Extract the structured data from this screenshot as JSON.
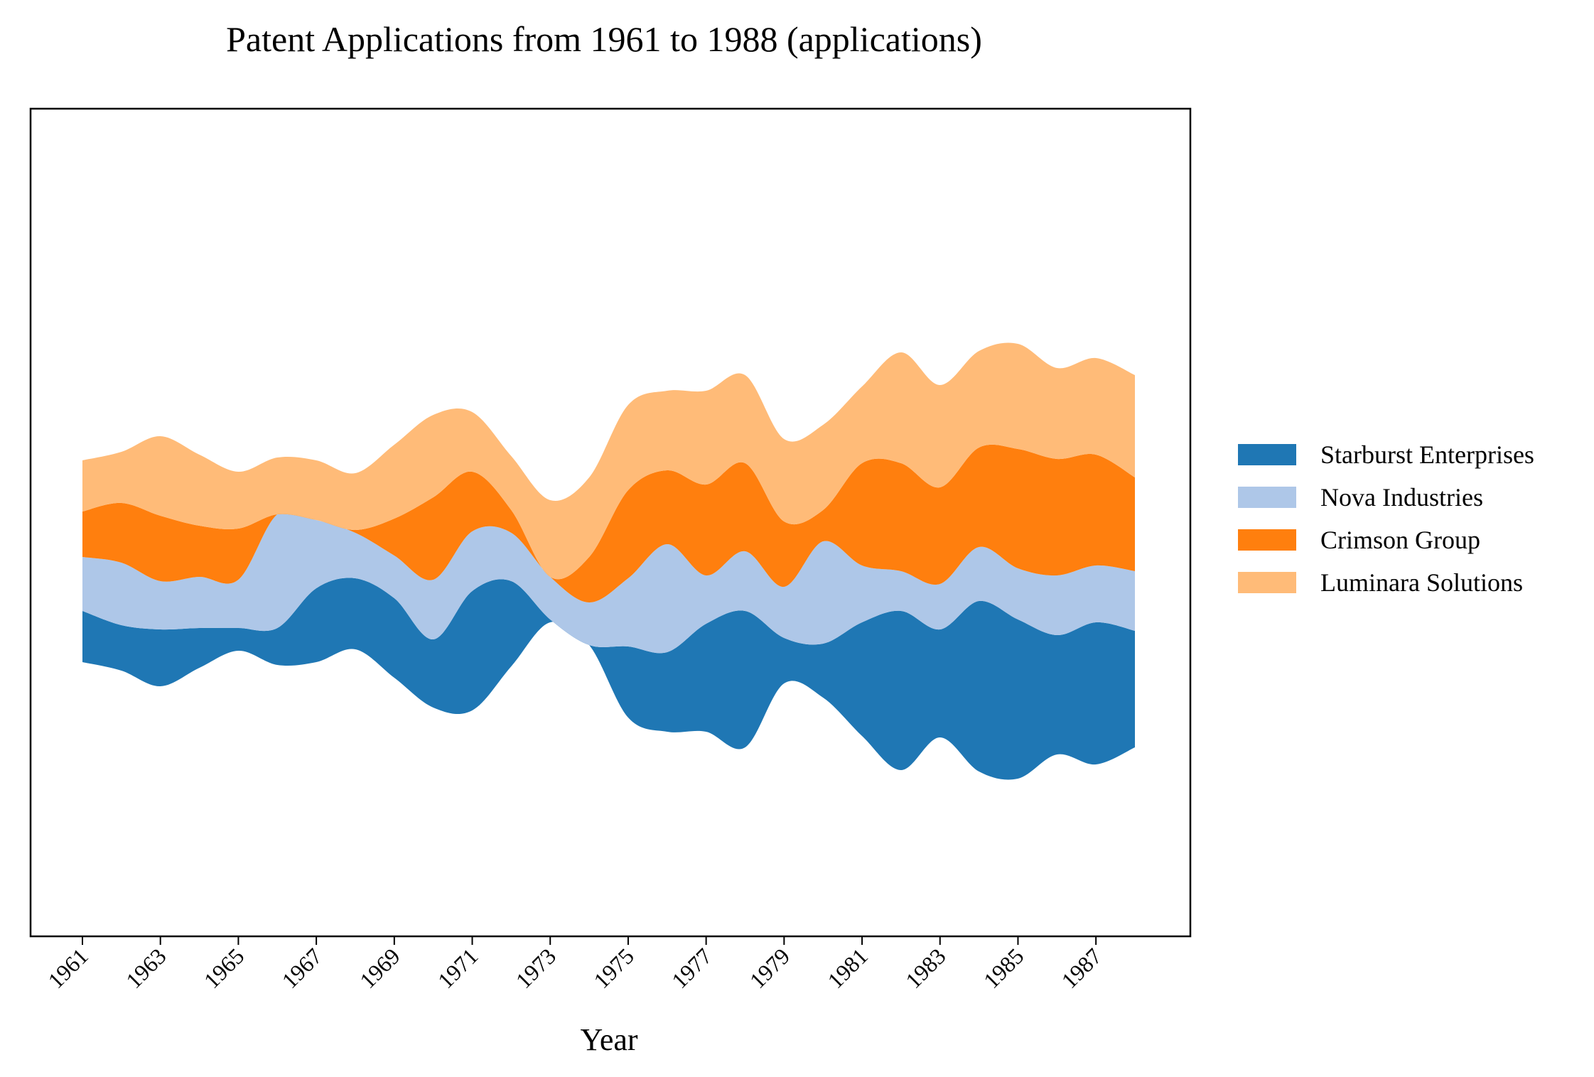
{
  "chart_data": {
    "type": "area",
    "subtype": "streamgraph",
    "title": "Patent Applications from 1961 to 1988 (applications)",
    "xlabel": "Year",
    "ylabel": "",
    "x": [
      1961,
      1962,
      1963,
      1964,
      1965,
      1966,
      1967,
      1968,
      1969,
      1970,
      1971,
      1972,
      1973,
      1974,
      1975,
      1976,
      1977,
      1978,
      1979,
      1980,
      1981,
      1982,
      1983,
      1984,
      1985,
      1986,
      1987,
      1988
    ],
    "xticks": [
      "1961",
      "1963",
      "1965",
      "1967",
      "1969",
      "1971",
      "1973",
      "1975",
      "1977",
      "1979",
      "1981",
      "1983",
      "1985",
      "1987"
    ],
    "yticks_visible": false,
    "grid": false,
    "legend_position": "right",
    "series": [
      {
        "name": "Starburst Enterprises",
        "color": "#1f77b4",
        "values": [
          90,
          80,
          100,
          70,
          40,
          65,
          130,
          125,
          140,
          120,
          210,
          150,
          5,
          0,
          125,
          140,
          190,
          240,
          80,
          95,
          200,
          280,
          190,
          300,
          280,
          210,
          250,
          205
        ]
      },
      {
        "name": "Nova Industries",
        "color": "#aec7e8",
        "values": [
          95,
          110,
          85,
          90,
          85,
          200,
          120,
          80,
          75,
          105,
          105,
          85,
          75,
          75,
          120,
          190,
          85,
          105,
          90,
          180,
          100,
          70,
          80,
          95,
          90,
          105,
          100,
          105
        ]
      },
      {
        "name": "Crimson Group",
        "color": "#ff7f0e",
        "values": [
          80,
          105,
          115,
          90,
          90,
          0,
          0,
          5,
          65,
          145,
          105,
          40,
          0,
          80,
          155,
          130,
          160,
          155,
          115,
          55,
          180,
          190,
          170,
          175,
          210,
          205,
          195,
          165
        ]
      },
      {
        "name": "Luminara Solutions",
        "color": "#ffbb78",
        "values": [
          90,
          90,
          140,
          125,
          100,
          100,
          105,
          100,
          130,
          145,
          105,
          95,
          135,
          140,
          150,
          140,
          165,
          155,
          145,
          150,
          135,
          195,
          180,
          170,
          185,
          160,
          170,
          180
        ]
      }
    ]
  }
}
